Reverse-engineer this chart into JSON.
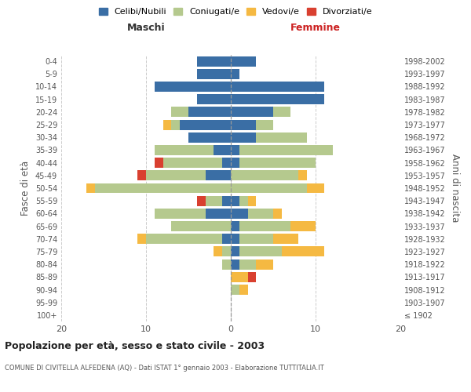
{
  "age_groups": [
    "100+",
    "95-99",
    "90-94",
    "85-89",
    "80-84",
    "75-79",
    "70-74",
    "65-69",
    "60-64",
    "55-59",
    "50-54",
    "45-49",
    "40-44",
    "35-39",
    "30-34",
    "25-29",
    "20-24",
    "15-19",
    "10-14",
    "5-9",
    "0-4"
  ],
  "birth_years": [
    "≤ 1902",
    "1903-1907",
    "1908-1912",
    "1913-1917",
    "1918-1922",
    "1923-1927",
    "1928-1932",
    "1933-1937",
    "1938-1942",
    "1943-1947",
    "1948-1952",
    "1953-1957",
    "1958-1962",
    "1963-1967",
    "1968-1972",
    "1973-1977",
    "1978-1982",
    "1983-1987",
    "1988-1992",
    "1993-1997",
    "1998-2002"
  ],
  "male": {
    "celibi": [
      0,
      0,
      0,
      0,
      0,
      0,
      1,
      0,
      3,
      1,
      0,
      3,
      1,
      2,
      5,
      6,
      5,
      4,
      9,
      4,
      4
    ],
    "coniugati": [
      0,
      0,
      0,
      0,
      1,
      1,
      9,
      7,
      6,
      2,
      16,
      7,
      7,
      7,
      0,
      1,
      2,
      0,
      0,
      0,
      0
    ],
    "vedovi": [
      0,
      0,
      0,
      0,
      0,
      1,
      1,
      0,
      0,
      0,
      1,
      0,
      0,
      0,
      0,
      1,
      0,
      0,
      0,
      0,
      0
    ],
    "divorziati": [
      0,
      0,
      0,
      0,
      0,
      0,
      0,
      0,
      0,
      1,
      0,
      1,
      1,
      0,
      0,
      0,
      0,
      0,
      0,
      0,
      0
    ]
  },
  "female": {
    "nubili": [
      0,
      0,
      0,
      0,
      1,
      1,
      1,
      1,
      2,
      1,
      0,
      0,
      1,
      1,
      3,
      3,
      5,
      11,
      11,
      1,
      3
    ],
    "coniugate": [
      0,
      0,
      1,
      0,
      2,
      5,
      4,
      6,
      3,
      1,
      9,
      8,
      9,
      11,
      6,
      2,
      2,
      0,
      0,
      0,
      0
    ],
    "vedove": [
      0,
      0,
      1,
      2,
      2,
      5,
      3,
      3,
      1,
      1,
      2,
      1,
      0,
      0,
      0,
      0,
      0,
      0,
      0,
      0,
      0
    ],
    "divorziate": [
      0,
      0,
      0,
      1,
      0,
      0,
      0,
      0,
      0,
      0,
      0,
      0,
      0,
      0,
      0,
      0,
      0,
      0,
      0,
      0,
      0
    ]
  },
  "colors": {
    "celibi": "#3a6ea5",
    "coniugati": "#b5c98e",
    "vedovi": "#f5b942",
    "divorziati": "#d94030"
  },
  "xlim": 20,
  "title": "Popolazione per età, sesso e stato civile - 2003",
  "subtitle": "COMUNE DI CIVITELLA ALFEDENA (AQ) - Dati ISTAT 1° gennaio 2003 - Elaborazione TUTTITALIA.IT",
  "ylabel_left": "Fasce di età",
  "ylabel_right": "Anni di nascita",
  "xlabel_left": "Maschi",
  "xlabel_right": "Femmine",
  "legend_labels": [
    "Celibi/Nubili",
    "Coniugati/e",
    "Vedovi/e",
    "Divorziati/e"
  ]
}
